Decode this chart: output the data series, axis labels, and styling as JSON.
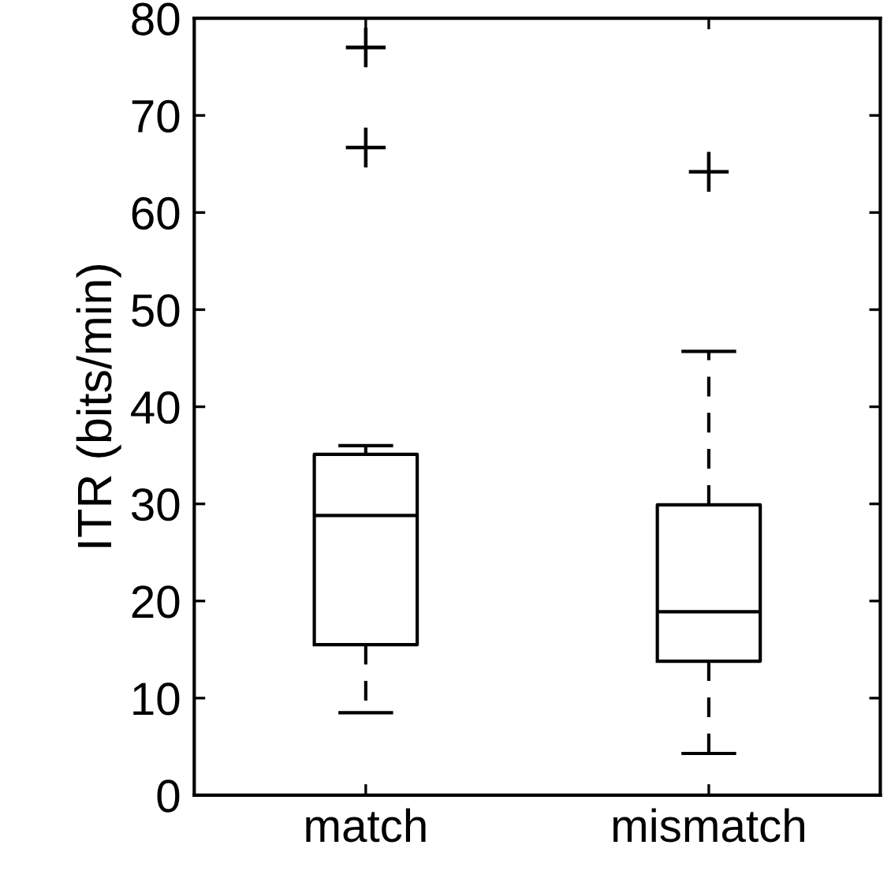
{
  "chart_data": {
    "type": "box",
    "ylabel": "ITR (bits/min)",
    "categories": [
      "match",
      "mismatch"
    ],
    "boxes": [
      {
        "low": 8.5,
        "q1": 15.5,
        "median": 28.8,
        "q3": 35.1,
        "high": 36.0,
        "outliers": [
          66.7,
          77.0
        ]
      },
      {
        "low": 4.3,
        "q1": 13.8,
        "median": 18.9,
        "q3": 29.9,
        "high": 45.7,
        "outliers": [
          64.2
        ]
      }
    ],
    "ylim": [
      0,
      80
    ],
    "yticks": [
      0,
      10,
      20,
      30,
      40,
      50,
      60,
      70,
      80
    ],
    "grid": false,
    "legend": false,
    "marker": "cross",
    "line_style": "dashed",
    "color": "#000000"
  }
}
